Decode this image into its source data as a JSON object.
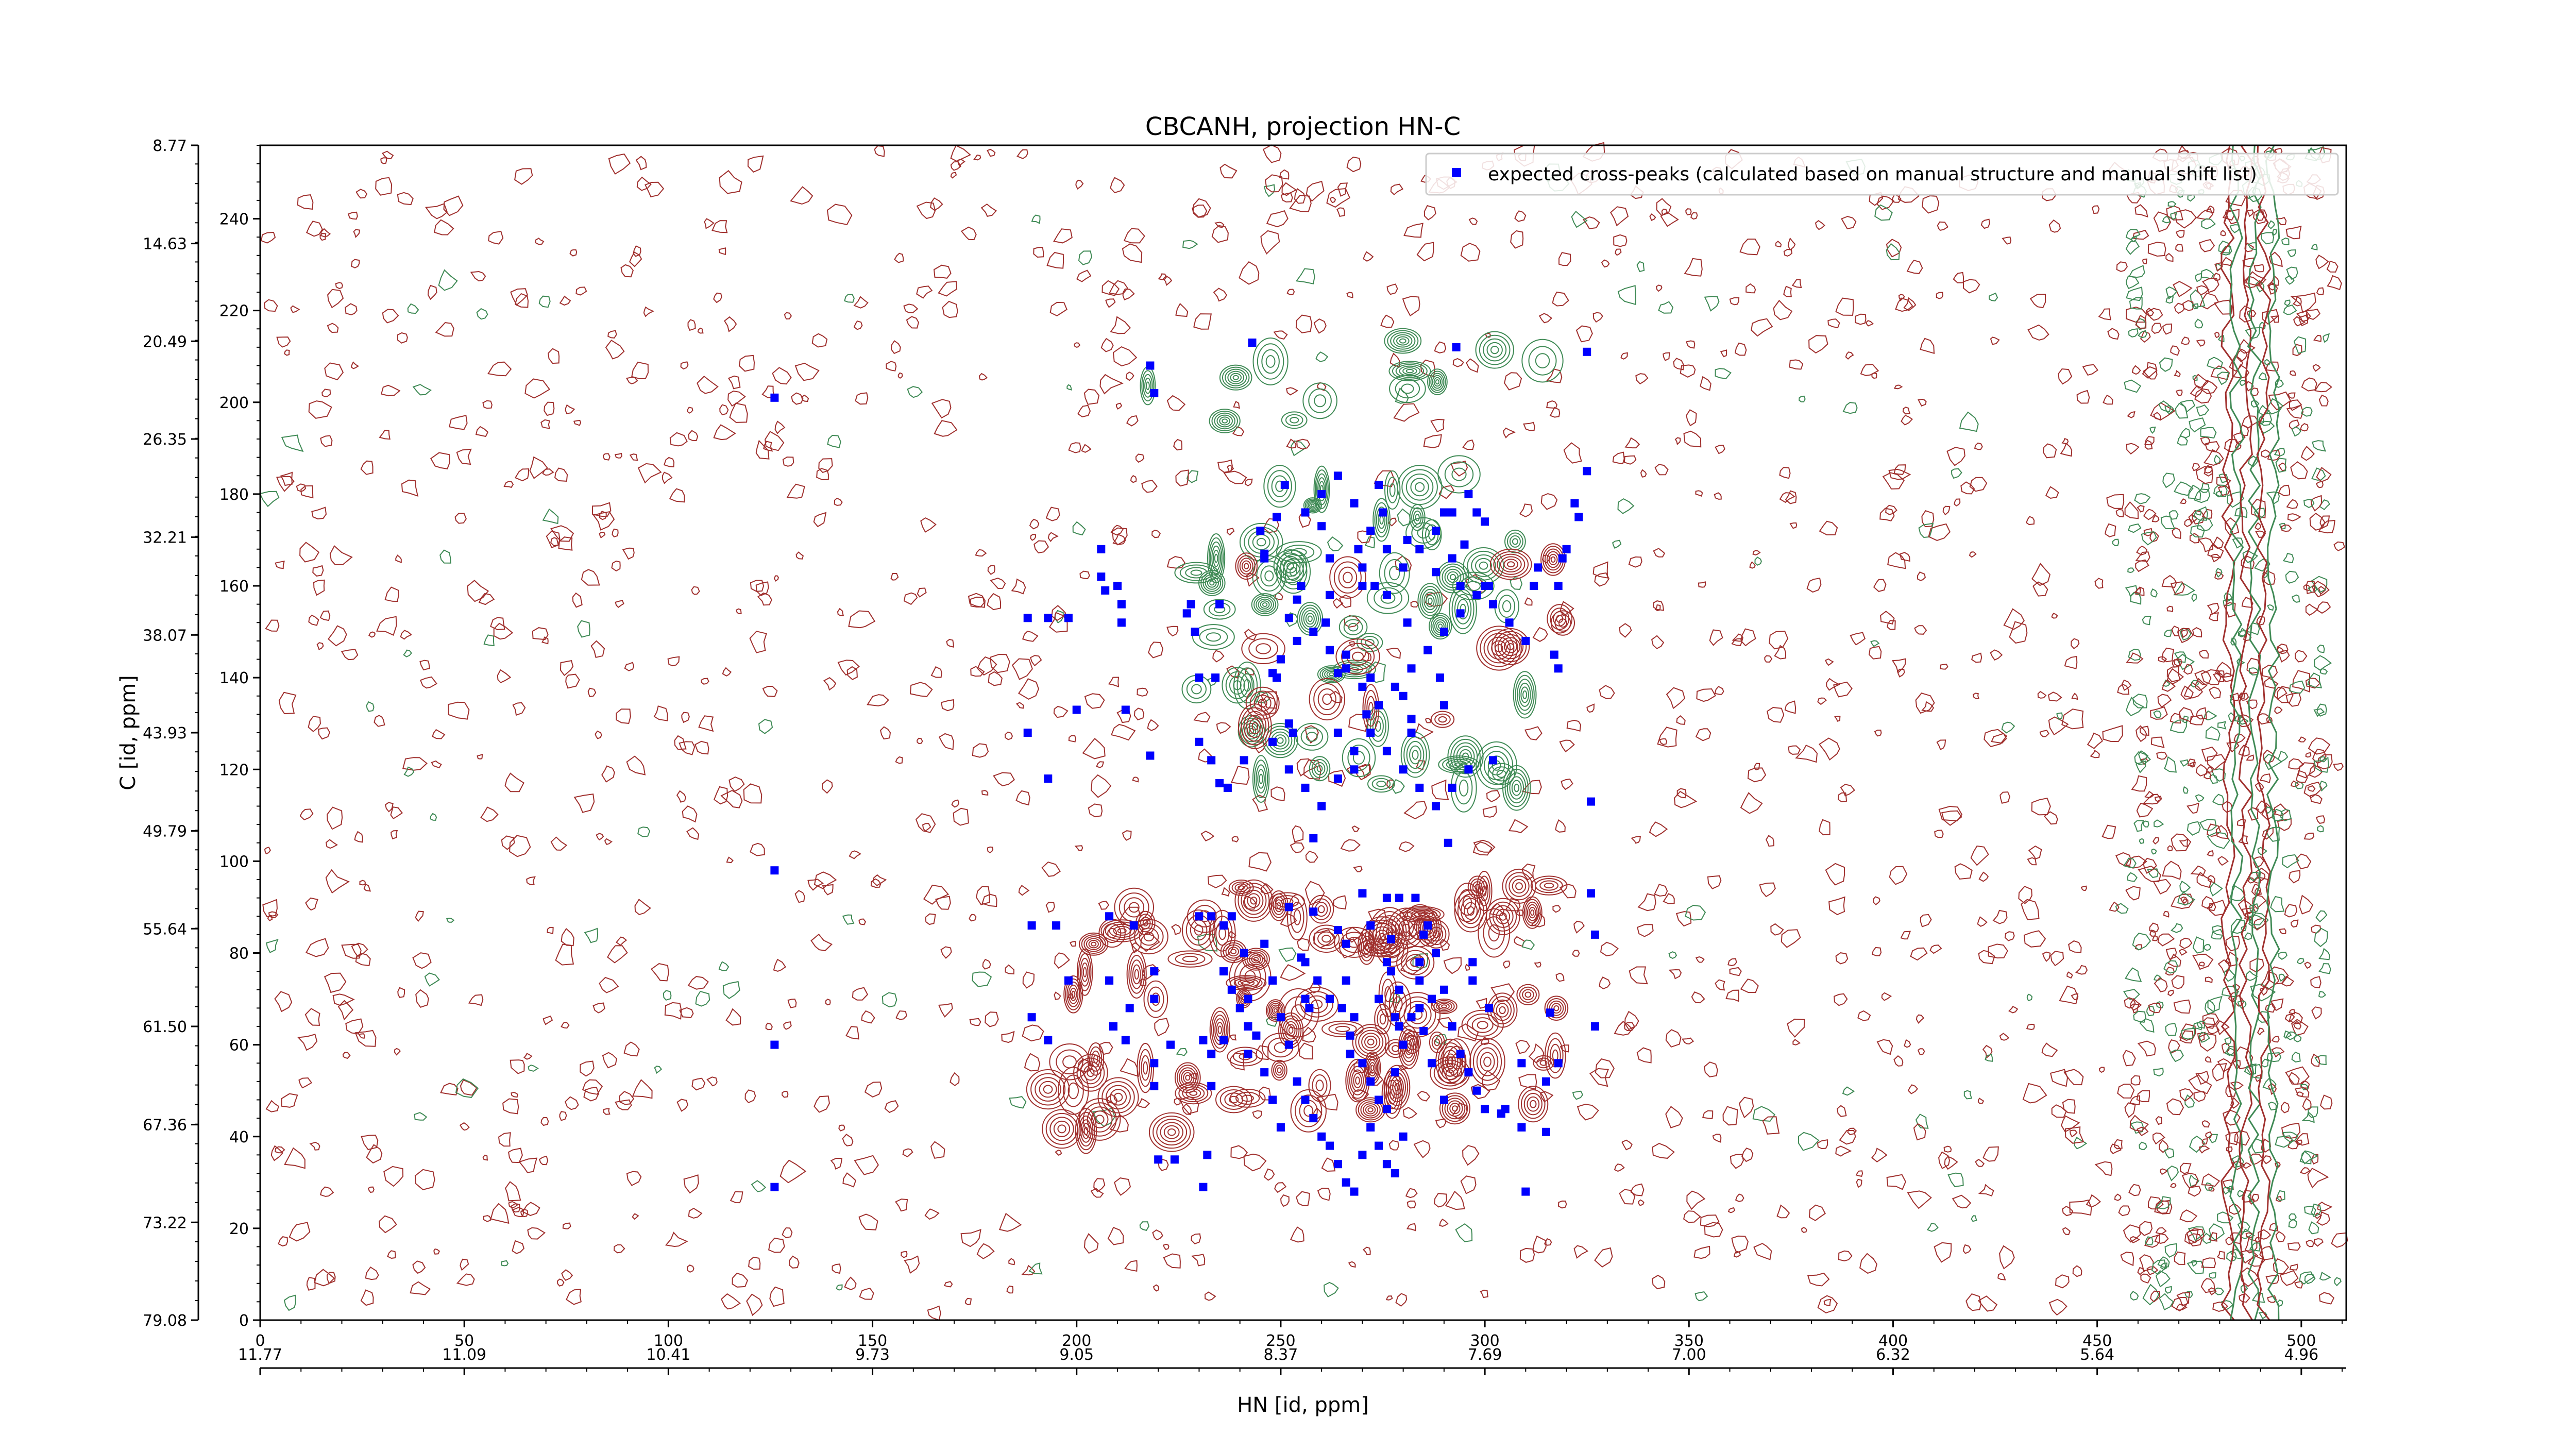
{
  "chart_data": {
    "type": "scatter",
    "title": "CBCANH, projection HN-C",
    "xlabel": "HN [id, ppm]",
    "ylabel": "C [id, ppm]",
    "xlim": [
      0,
      511
    ],
    "ylim": [
      0,
      256
    ],
    "grid": false,
    "legend_position": "top-right",
    "x_ticks": [
      0,
      50,
      100,
      150,
      200,
      250,
      300,
      350,
      400,
      450,
      500
    ],
    "y_ticks": [
      0,
      20,
      40,
      60,
      80,
      100,
      120,
      140,
      160,
      180,
      200,
      220,
      240
    ],
    "secondary_x_ticks": [
      {
        "at": 0,
        "label": "11.77"
      },
      {
        "at": 50,
        "label": "11.09"
      },
      {
        "at": 100,
        "label": "10.41"
      },
      {
        "at": 150,
        "label": "9.73"
      },
      {
        "at": 200,
        "label": "9.05"
      },
      {
        "at": 250,
        "label": "8.37"
      },
      {
        "at": 300,
        "label": "7.69"
      },
      {
        "at": 350,
        "label": "7.00"
      },
      {
        "at": 400,
        "label": "6.32"
      },
      {
        "at": 450,
        "label": "5.64"
      },
      {
        "at": 500,
        "label": "4.96"
      }
    ],
    "secondary_y_ticks": [
      {
        "at": 0,
        "label": "79.08"
      },
      {
        "at": 21.3,
        "label": "73.22"
      },
      {
        "at": 42.6,
        "label": "67.36"
      },
      {
        "at": 64,
        "label": "61.50"
      },
      {
        "at": 85.3,
        "label": "55.64"
      },
      {
        "at": 106.6,
        "label": "49.79"
      },
      {
        "at": 128,
        "label": "43.93"
      },
      {
        "at": 149.3,
        "label": "38.07"
      },
      {
        "at": 170.6,
        "label": "32.21"
      },
      {
        "at": 192,
        "label": "26.35"
      },
      {
        "at": 213.3,
        "label": "20.49"
      },
      {
        "at": 234.6,
        "label": "14.63"
      },
      {
        "at": 256,
        "label": "8.77"
      }
    ],
    "series": [
      {
        "name": "expected cross-peaks (calculated based on manual structure and manual shift list)",
        "color": "#0000ff",
        "marker": "square",
        "points": [
          [
            126,
            201
          ],
          [
            126,
            98
          ],
          [
            126,
            60
          ],
          [
            126,
            29
          ],
          [
            188,
            153
          ],
          [
            189,
            86
          ],
          [
            189,
            66
          ],
          [
            188,
            128
          ],
          [
            193,
            61
          ],
          [
            193,
            153
          ],
          [
            193,
            118
          ],
          [
            195,
            86
          ],
          [
            198,
            153
          ],
          [
            198,
            74
          ],
          [
            200,
            133
          ],
          [
            206,
            162
          ],
          [
            207,
            159
          ],
          [
            206,
            168
          ],
          [
            208,
            88
          ],
          [
            208,
            74
          ],
          [
            209,
            64
          ],
          [
            210,
            160
          ],
          [
            211,
            156
          ],
          [
            211,
            152
          ],
          [
            212,
            133
          ],
          [
            212,
            61
          ],
          [
            213,
            68
          ],
          [
            214,
            86
          ],
          [
            218,
            123
          ],
          [
            218,
            208
          ],
          [
            219,
            202
          ],
          [
            219,
            76
          ],
          [
            219,
            70
          ],
          [
            219,
            56
          ],
          [
            219,
            51
          ],
          [
            220,
            35
          ],
          [
            223,
            60
          ],
          [
            224,
            35
          ],
          [
            227,
            154
          ],
          [
            228,
            156
          ],
          [
            229,
            150
          ],
          [
            230,
            140
          ],
          [
            230,
            126
          ],
          [
            230,
            88
          ],
          [
            231,
            61
          ],
          [
            231,
            29
          ],
          [
            232,
            36
          ],
          [
            233,
            122
          ],
          [
            233,
            88
          ],
          [
            233,
            58
          ],
          [
            233,
            51
          ],
          [
            234,
            140
          ],
          [
            235,
            156
          ],
          [
            235,
            117
          ],
          [
            236,
            86
          ],
          [
            236,
            61
          ],
          [
            237,
            116
          ],
          [
            238,
            88
          ],
          [
            241,
            122
          ],
          [
            241,
            80
          ],
          [
            242,
            64
          ],
          [
            242,
            58
          ],
          [
            243,
            213
          ],
          [
            245,
            172
          ],
          [
            246,
            167
          ],
          [
            248,
            141
          ],
          [
            249,
            140
          ],
          [
            251,
            182
          ],
          [
            252,
            130
          ],
          [
            253,
            128
          ],
          [
            254,
            157
          ],
          [
            255,
            160
          ],
          [
            255,
            79
          ],
          [
            256,
            70
          ],
          [
            257,
            68
          ],
          [
            258,
            105
          ],
          [
            258,
            89
          ],
          [
            260,
            173
          ],
          [
            262,
            166
          ],
          [
            262,
            158
          ],
          [
            264,
            141
          ],
          [
            264,
            128
          ],
          [
            265,
            68
          ],
          [
            266,
            82
          ],
          [
            267,
            62
          ],
          [
            267,
            58
          ],
          [
            269,
            168
          ],
          [
            270,
            164
          ],
          [
            270,
            160
          ],
          [
            271,
            132
          ],
          [
            272,
            140
          ],
          [
            273,
            160
          ],
          [
            274,
            182
          ],
          [
            275,
            176
          ],
          [
            276,
            158
          ],
          [
            276,
            92
          ],
          [
            276,
            78
          ],
          [
            277,
            76
          ],
          [
            277,
            83
          ],
          [
            278,
            66
          ],
          [
            279,
            64
          ],
          [
            279,
            72
          ],
          [
            280,
            136
          ],
          [
            281,
            170
          ],
          [
            281,
            152
          ],
          [
            282,
            131
          ],
          [
            282,
            128
          ],
          [
            283,
            92
          ],
          [
            284,
            68
          ],
          [
            284,
            74
          ],
          [
            285,
            63
          ],
          [
            287,
            70
          ],
          [
            288,
            163
          ],
          [
            289,
            140
          ],
          [
            290,
            176
          ],
          [
            290,
            134
          ],
          [
            291,
            104
          ],
          [
            292,
            166
          ],
          [
            293,
            212
          ],
          [
            294,
            160
          ],
          [
            295,
            169
          ],
          [
            297,
            78
          ],
          [
            297,
            74
          ],
          [
            298,
            176
          ],
          [
            300,
            160
          ],
          [
            301,
            160
          ],
          [
            301,
            68
          ],
          [
            302,
            122
          ],
          [
            304,
            45
          ],
          [
            305,
            46
          ],
          [
            309,
            42
          ],
          [
            309,
            56
          ],
          [
            310,
            28
          ],
          [
            312,
            160
          ],
          [
            313,
            164
          ],
          [
            315,
            41
          ],
          [
            315,
            52
          ],
          [
            316,
            67
          ],
          [
            317,
            145
          ],
          [
            318,
            142
          ],
          [
            318,
            56
          ],
          [
            318,
            160
          ],
          [
            319,
            166
          ],
          [
            320,
            168
          ],
          [
            322,
            178
          ],
          [
            323,
            175
          ],
          [
            325,
            211
          ],
          [
            325,
            185
          ],
          [
            326,
            113
          ],
          [
            326,
            93
          ],
          [
            327,
            84
          ],
          [
            327,
            64
          ],
          [
            246,
            166
          ],
          [
            249,
            175
          ],
          [
            252,
            153
          ],
          [
            261,
            152
          ],
          [
            266,
            145
          ],
          [
            268,
            120
          ],
          [
            270,
            93
          ],
          [
            272,
            86
          ],
          [
            274,
            70
          ],
          [
            279,
            92
          ],
          [
            285,
            84
          ],
          [
            287,
            56
          ],
          [
            290,
            48
          ],
          [
            252,
            90
          ],
          [
            256,
            78
          ],
          [
            259,
            74
          ],
          [
            262,
            70
          ],
          [
            264,
            85
          ],
          [
            266,
            74
          ],
          [
            268,
            66
          ],
          [
            270,
            56
          ],
          [
            272,
            52
          ],
          [
            274,
            48
          ],
          [
            276,
            46
          ],
          [
            278,
            54
          ],
          [
            280,
            60
          ],
          [
            282,
            66
          ],
          [
            284,
            78
          ],
          [
            286,
            86
          ],
          [
            288,
            80
          ],
          [
            290,
            72
          ],
          [
            292,
            64
          ],
          [
            294,
            58
          ],
          [
            296,
            54
          ],
          [
            298,
            50
          ],
          [
            300,
            46
          ],
          [
            246,
            82
          ],
          [
            248,
            74
          ],
          [
            250,
            66
          ],
          [
            252,
            60
          ],
          [
            254,
            52
          ],
          [
            256,
            48
          ],
          [
            258,
            44
          ],
          [
            260,
            40
          ],
          [
            262,
            38
          ],
          [
            264,
            34
          ],
          [
            266,
            30
          ],
          [
            268,
            28
          ],
          [
            270,
            36
          ],
          [
            272,
            42
          ],
          [
            274,
            38
          ],
          [
            276,
            34
          ],
          [
            278,
            32
          ],
          [
            280,
            40
          ],
          [
            242,
            70
          ],
          [
            244,
            62
          ],
          [
            246,
            54
          ],
          [
            248,
            48
          ],
          [
            250,
            42
          ],
          [
            236,
            76
          ],
          [
            238,
            72
          ],
          [
            240,
            68
          ],
          [
            248,
            126
          ],
          [
            252,
            120
          ],
          [
            256,
            116
          ],
          [
            260,
            112
          ],
          [
            264,
            118
          ],
          [
            268,
            124
          ],
          [
            272,
            128
          ],
          [
            276,
            124
          ],
          [
            280,
            120
          ],
          [
            284,
            116
          ],
          [
            288,
            112
          ],
          [
            292,
            116
          ],
          [
            296,
            120
          ],
          [
            250,
            144
          ],
          [
            254,
            148
          ],
          [
            258,
            150
          ],
          [
            262,
            146
          ],
          [
            266,
            142
          ],
          [
            270,
            138
          ],
          [
            274,
            134
          ],
          [
            278,
            138
          ],
          [
            282,
            142
          ],
          [
            286,
            146
          ],
          [
            290,
            150
          ],
          [
            294,
            154
          ],
          [
            298,
            158
          ],
          [
            302,
            156
          ],
          [
            306,
            152
          ],
          [
            310,
            148
          ],
          [
            256,
            176
          ],
          [
            260,
            180
          ],
          [
            264,
            184
          ],
          [
            268,
            178
          ],
          [
            272,
            172
          ],
          [
            276,
            168
          ],
          [
            280,
            164
          ],
          [
            284,
            168
          ],
          [
            288,
            172
          ],
          [
            292,
            176
          ],
          [
            296,
            180
          ],
          [
            300,
            174
          ]
        ]
      }
    ]
  }
}
